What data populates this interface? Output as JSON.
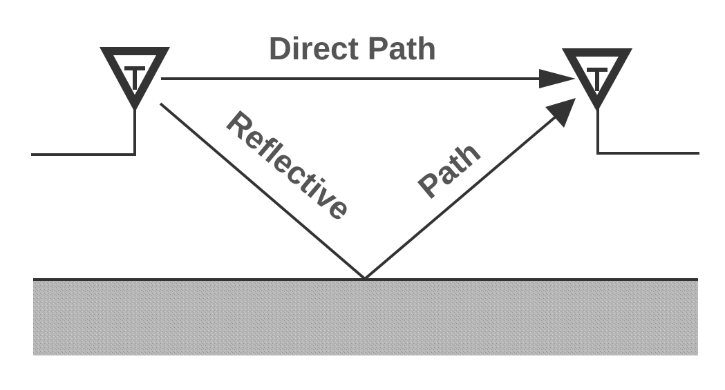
{
  "labels": {
    "direct_path": "Direct Path",
    "reflective": "Reflective",
    "path": "Path"
  },
  "colors": {
    "line": "#333333",
    "text": "#555555",
    "ground": "#b4b4b4",
    "ground_edge": "#333333",
    "background": "#ffffff"
  },
  "icons": {
    "transmitter": "antenna-icon",
    "receiver": "antenna-icon"
  }
}
